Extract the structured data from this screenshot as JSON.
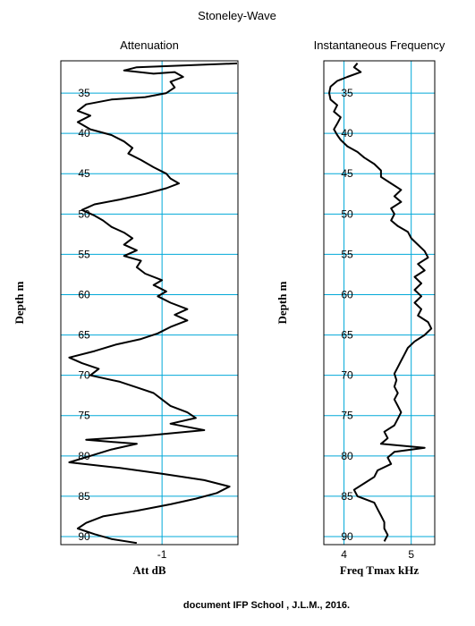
{
  "title": "Stoneley-Wave",
  "footer": "document IFP School , J.L.M., 2016.",
  "chart_data": [
    {
      "type": "line",
      "title": "Attenuation",
      "xlabel": "Att dB",
      "ylabel": "Depth m",
      "x_tick_values": [
        -1
      ],
      "x_tick_labels": [
        "-1"
      ],
      "xlim": [
        -2.2,
        -0.1
      ],
      "ylim": [
        31,
        91
      ],
      "y_inverted": true,
      "y_ticks": [
        35,
        40,
        45,
        50,
        55,
        60,
        65,
        70,
        75,
        80,
        85,
        90
      ],
      "grid": true,
      "series": [
        {
          "values": [
            {
              "x": -0.05,
              "y": 31.3
            },
            {
              "x": -1.3,
              "y": 31.8
            },
            {
              "x": -1.45,
              "y": 32.2
            },
            {
              "x": -1.1,
              "y": 32.6
            },
            {
              "x": -0.85,
              "y": 32.4
            },
            {
              "x": -0.75,
              "y": 33.0
            },
            {
              "x": -0.9,
              "y": 33.6
            },
            {
              "x": -0.85,
              "y": 34.3
            },
            {
              "x": -0.95,
              "y": 35.0
            },
            {
              "x": -1.2,
              "y": 35.5
            },
            {
              "x": -1.6,
              "y": 35.8
            },
            {
              "x": -1.9,
              "y": 36.4
            },
            {
              "x": -2.0,
              "y": 37.2
            },
            {
              "x": -1.85,
              "y": 37.8
            },
            {
              "x": -2.0,
              "y": 38.6
            },
            {
              "x": -1.85,
              "y": 39.5
            },
            {
              "x": -1.6,
              "y": 40.2
            },
            {
              "x": -1.45,
              "y": 41.0
            },
            {
              "x": -1.35,
              "y": 41.8
            },
            {
              "x": -1.4,
              "y": 42.5
            },
            {
              "x": -1.25,
              "y": 43.3
            },
            {
              "x": -1.1,
              "y": 44.2
            },
            {
              "x": -0.95,
              "y": 45.0
            },
            {
              "x": -0.9,
              "y": 45.6
            },
            {
              "x": -0.8,
              "y": 46.2
            },
            {
              "x": -0.95,
              "y": 46.8
            },
            {
              "x": -1.2,
              "y": 47.5
            },
            {
              "x": -1.5,
              "y": 48.2
            },
            {
              "x": -1.8,
              "y": 48.8
            },
            {
              "x": -1.95,
              "y": 49.5
            },
            {
              "x": -1.8,
              "y": 50.2
            },
            {
              "x": -1.7,
              "y": 50.8
            },
            {
              "x": -1.6,
              "y": 51.6
            },
            {
              "x": -1.45,
              "y": 52.3
            },
            {
              "x": -1.35,
              "y": 53.0
            },
            {
              "x": -1.45,
              "y": 53.8
            },
            {
              "x": -1.3,
              "y": 54.5
            },
            {
              "x": -1.45,
              "y": 55.2
            },
            {
              "x": -1.25,
              "y": 55.8
            },
            {
              "x": -1.3,
              "y": 56.6
            },
            {
              "x": -1.2,
              "y": 57.4
            },
            {
              "x": -1.0,
              "y": 58.2
            },
            {
              "x": -1.1,
              "y": 58.8
            },
            {
              "x": -0.95,
              "y": 59.6
            },
            {
              "x": -1.05,
              "y": 60.2
            },
            {
              "x": -0.9,
              "y": 61.0
            },
            {
              "x": -0.7,
              "y": 61.8
            },
            {
              "x": -0.85,
              "y": 62.5
            },
            {
              "x": -0.7,
              "y": 63.2
            },
            {
              "x": -0.9,
              "y": 64.0
            },
            {
              "x": -1.05,
              "y": 64.8
            },
            {
              "x": -1.25,
              "y": 65.5
            },
            {
              "x": -1.55,
              "y": 66.2
            },
            {
              "x": -1.8,
              "y": 67.0
            },
            {
              "x": -2.1,
              "y": 67.8
            },
            {
              "x": -1.95,
              "y": 68.5
            },
            {
              "x": -1.75,
              "y": 69.2
            },
            {
              "x": -1.85,
              "y": 70.0
            },
            {
              "x": -1.5,
              "y": 70.8
            },
            {
              "x": -1.3,
              "y": 71.5
            },
            {
              "x": -1.1,
              "y": 72.2
            },
            {
              "x": -1.0,
              "y": 73.0
            },
            {
              "x": -0.9,
              "y": 73.8
            },
            {
              "x": -0.7,
              "y": 74.6
            },
            {
              "x": -0.6,
              "y": 75.3
            },
            {
              "x": -0.9,
              "y": 76.0
            },
            {
              "x": -0.5,
              "y": 76.8
            },
            {
              "x": -1.2,
              "y": 77.5
            },
            {
              "x": -1.9,
              "y": 78.0
            },
            {
              "x": -1.3,
              "y": 78.5
            },
            {
              "x": -1.6,
              "y": 79.2
            },
            {
              "x": -1.85,
              "y": 80.0
            },
            {
              "x": -2.1,
              "y": 80.8
            },
            {
              "x": -1.5,
              "y": 81.5
            },
            {
              "x": -1.0,
              "y": 82.2
            },
            {
              "x": -0.5,
              "y": 83.0
            },
            {
              "x": -0.2,
              "y": 83.8
            },
            {
              "x": -0.35,
              "y": 84.6
            },
            {
              "x": -0.6,
              "y": 85.3
            },
            {
              "x": -0.9,
              "y": 86.0
            },
            {
              "x": -1.3,
              "y": 86.8
            },
            {
              "x": -1.7,
              "y": 87.5
            },
            {
              "x": -1.9,
              "y": 88.3
            },
            {
              "x": -2.0,
              "y": 89.0
            },
            {
              "x": -1.8,
              "y": 89.7
            },
            {
              "x": -1.6,
              "y": 90.3
            },
            {
              "x": -1.3,
              "y": 90.8
            }
          ]
        }
      ]
    },
    {
      "type": "line",
      "title": "Instantaneous Frequency",
      "xlabel": "Freq Tmax kHz",
      "ylabel": "Depth m",
      "x_tick_values": [
        4,
        5
      ],
      "x_tick_labels": [
        "4",
        "5"
      ],
      "xlim": [
        3.7,
        5.35
      ],
      "ylim": [
        31,
        91
      ],
      "y_inverted": true,
      "y_ticks": [
        35,
        40,
        45,
        50,
        55,
        60,
        65,
        70,
        75,
        80,
        85,
        90
      ],
      "grid": true,
      "series": [
        {
          "values": [
            {
              "x": 4.2,
              "y": 31.3
            },
            {
              "x": 4.15,
              "y": 31.8
            },
            {
              "x": 4.25,
              "y": 32.4
            },
            {
              "x": 4.05,
              "y": 33.0
            },
            {
              "x": 3.9,
              "y": 33.5
            },
            {
              "x": 3.8,
              "y": 34.2
            },
            {
              "x": 3.78,
              "y": 35.0
            },
            {
              "x": 3.8,
              "y": 35.8
            },
            {
              "x": 3.9,
              "y": 36.5
            },
            {
              "x": 3.85,
              "y": 37.3
            },
            {
              "x": 3.95,
              "y": 38.0
            },
            {
              "x": 3.9,
              "y": 38.8
            },
            {
              "x": 3.85,
              "y": 39.5
            },
            {
              "x": 3.9,
              "y": 40.2
            },
            {
              "x": 3.95,
              "y": 40.8
            },
            {
              "x": 4.05,
              "y": 41.6
            },
            {
              "x": 4.2,
              "y": 42.3
            },
            {
              "x": 4.3,
              "y": 43.0
            },
            {
              "x": 4.45,
              "y": 43.8
            },
            {
              "x": 4.55,
              "y": 44.6
            },
            {
              "x": 4.55,
              "y": 45.4
            },
            {
              "x": 4.7,
              "y": 46.2
            },
            {
              "x": 4.85,
              "y": 47.0
            },
            {
              "x": 4.75,
              "y": 47.8
            },
            {
              "x": 4.85,
              "y": 48.5
            },
            {
              "x": 4.7,
              "y": 49.3
            },
            {
              "x": 4.75,
              "y": 50.0
            },
            {
              "x": 4.7,
              "y": 50.8
            },
            {
              "x": 4.8,
              "y": 51.5
            },
            {
              "x": 4.95,
              "y": 52.2
            },
            {
              "x": 5.0,
              "y": 53.0
            },
            {
              "x": 5.1,
              "y": 53.8
            },
            {
              "x": 5.2,
              "y": 54.6
            },
            {
              "x": 5.25,
              "y": 55.4
            },
            {
              "x": 5.1,
              "y": 56.2
            },
            {
              "x": 5.2,
              "y": 57.0
            },
            {
              "x": 5.05,
              "y": 57.8
            },
            {
              "x": 5.15,
              "y": 58.6
            },
            {
              "x": 5.05,
              "y": 59.4
            },
            {
              "x": 5.15,
              "y": 60.2
            },
            {
              "x": 5.05,
              "y": 61.0
            },
            {
              "x": 5.15,
              "y": 61.8
            },
            {
              "x": 5.1,
              "y": 62.6
            },
            {
              "x": 5.25,
              "y": 63.4
            },
            {
              "x": 5.3,
              "y": 64.2
            },
            {
              "x": 5.2,
              "y": 65.0
            },
            {
              "x": 5.05,
              "y": 65.8
            },
            {
              "x": 4.95,
              "y": 66.6
            },
            {
              "x": 4.9,
              "y": 67.4
            },
            {
              "x": 4.85,
              "y": 68.2
            },
            {
              "x": 4.8,
              "y": 69.0
            },
            {
              "x": 4.75,
              "y": 69.8
            },
            {
              "x": 4.78,
              "y": 70.6
            },
            {
              "x": 4.75,
              "y": 71.4
            },
            {
              "x": 4.8,
              "y": 72.2
            },
            {
              "x": 4.75,
              "y": 73.0
            },
            {
              "x": 4.8,
              "y": 73.8
            },
            {
              "x": 4.85,
              "y": 74.6
            },
            {
              "x": 4.8,
              "y": 75.4
            },
            {
              "x": 4.75,
              "y": 76.2
            },
            {
              "x": 4.6,
              "y": 77.0
            },
            {
              "x": 4.65,
              "y": 77.8
            },
            {
              "x": 4.55,
              "y": 78.5
            },
            {
              "x": 5.2,
              "y": 79.0
            },
            {
              "x": 4.75,
              "y": 79.5
            },
            {
              "x": 4.65,
              "y": 80.2
            },
            {
              "x": 4.7,
              "y": 81.0
            },
            {
              "x": 4.5,
              "y": 81.8
            },
            {
              "x": 4.45,
              "y": 82.6
            },
            {
              "x": 4.3,
              "y": 83.4
            },
            {
              "x": 4.15,
              "y": 84.2
            },
            {
              "x": 4.2,
              "y": 85.0
            },
            {
              "x": 4.45,
              "y": 85.8
            },
            {
              "x": 4.5,
              "y": 86.6
            },
            {
              "x": 4.55,
              "y": 87.4
            },
            {
              "x": 4.6,
              "y": 88.2
            },
            {
              "x": 4.6,
              "y": 89.0
            },
            {
              "x": 4.65,
              "y": 89.8
            },
            {
              "x": 4.6,
              "y": 90.6
            }
          ]
        }
      ]
    }
  ]
}
